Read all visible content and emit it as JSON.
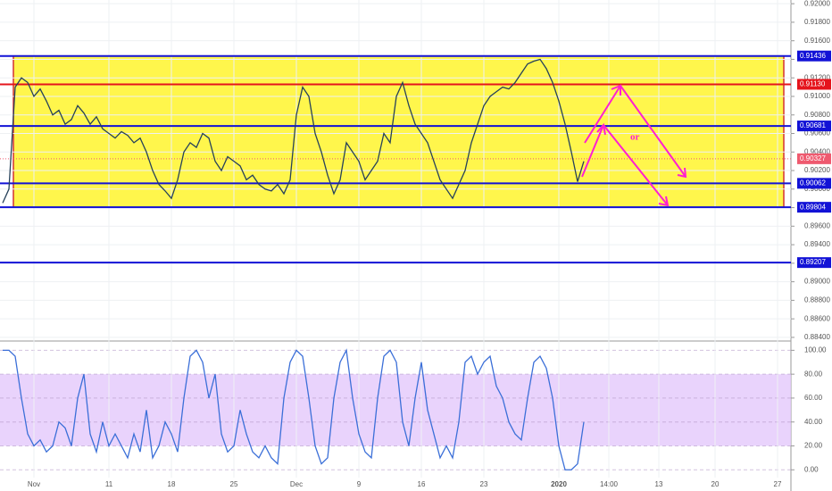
{
  "chart_data": [
    {
      "type": "line",
      "categories": [
        null,
        null,
        null,
        null,
        null,
        "Nov",
        null,
        null,
        null,
        null,
        null,
        null,
        null,
        null,
        null,
        null,
        null,
        "11",
        null,
        null,
        null,
        null,
        null,
        null,
        null,
        null,
        null,
        "18",
        null,
        null,
        null,
        null,
        null,
        null,
        null,
        null,
        null,
        "25",
        null,
        null,
        null,
        null,
        null,
        null,
        null,
        null,
        null,
        "Dec",
        null,
        null,
        null,
        null,
        null,
        null,
        null,
        null,
        null,
        "9",
        null,
        null,
        null,
        null,
        null,
        null,
        null,
        null,
        null,
        "16",
        null,
        null,
        null,
        null,
        null,
        null,
        null,
        null,
        null,
        "23",
        null,
        null,
        null,
        null,
        null,
        null,
        null,
        null,
        null,
        null,
        null,
        "2020",
        null,
        null,
        null,
        null,
        null,
        null,
        null,
        "14:00",
        null,
        null,
        null,
        null,
        null,
        null,
        null,
        "13",
        null,
        null,
        null,
        null,
        null,
        null,
        null,
        null,
        "20",
        null,
        null,
        null,
        null,
        null,
        null,
        null,
        null,
        null,
        "27",
        null
      ],
      "series": [
        {
          "color": "#26415a",
          "values": [
            0.8985,
            0.9,
            0.911,
            0.912,
            0.9115,
            0.91,
            0.9108,
            0.9095,
            0.908,
            0.9085,
            0.907,
            0.9075,
            0.909,
            0.9082,
            0.907,
            0.9078,
            0.9065,
            0.906,
            0.9055,
            0.9062,
            0.9058,
            0.905,
            0.9055,
            0.904,
            0.902,
            0.9005,
            0.8998,
            0.899,
            0.901,
            0.904,
            0.905,
            0.9045,
            0.906,
            0.9055,
            0.903,
            0.902,
            0.9035,
            0.903,
            0.9025,
            0.901,
            0.9015,
            0.9005,
            0.9,
            0.8998,
            0.9005,
            0.8995,
            0.901,
            0.908,
            0.911,
            0.91,
            0.906,
            0.904,
            0.9015,
            0.8995,
            0.901,
            0.905,
            0.904,
            0.903,
            0.901,
            0.902,
            0.903,
            0.906,
            0.905,
            0.91,
            0.9115,
            0.909,
            0.907,
            0.906,
            0.905,
            0.903,
            0.901,
            0.9,
            0.899,
            0.9005,
            0.902,
            0.905,
            0.907,
            0.909,
            0.91,
            0.9105,
            0.911,
            0.9108,
            0.9115,
            0.9125,
            0.9135,
            0.9138,
            0.914,
            0.913,
            0.9115,
            0.9095,
            0.907,
            0.904,
            0.9008,
            0.903,
            null,
            null,
            null,
            null,
            null,
            null,
            null,
            null,
            null,
            null,
            null,
            null,
            null,
            null,
            null,
            null,
            null,
            null,
            null,
            null,
            null,
            null,
            null,
            null,
            null,
            null,
            null,
            null,
            null,
            null,
            null,
            null
          ]
        }
      ],
      "ylim": [
        0.8838,
        0.9204
      ],
      "yticks": [
        {
          "value": 0.884,
          "label": "0.88400"
        },
        {
          "value": 0.886,
          "label": "0.88600"
        },
        {
          "value": 0.888,
          "label": "0.88800"
        },
        {
          "value": 0.89,
          "label": "0.89000"
        },
        {
          "value": 0.892,
          "label": "0.89200"
        },
        {
          "value": 0.894,
          "label": "0.89400"
        },
        {
          "value": 0.896,
          "label": "0.89600"
        },
        {
          "value": 0.898,
          "label": "0.89800"
        },
        {
          "value": 0.9,
          "label": "0.90000"
        },
        {
          "value": 0.902,
          "label": "0.90200"
        },
        {
          "value": 0.904,
          "label": "0.90400"
        },
        {
          "value": 0.906,
          "label": "0.90600"
        },
        {
          "value": 0.908,
          "label": "0.90800"
        },
        {
          "value": 0.91,
          "label": "0.91000"
        },
        {
          "value": 0.912,
          "label": "0.91200"
        },
        {
          "value": 0.914,
          "label": "0.91400"
        },
        {
          "value": 0.916,
          "label": "0.91600"
        },
        {
          "value": 0.918,
          "label": "0.91800"
        },
        {
          "value": 0.92,
          "label": "0.92000"
        }
      ],
      "grid": true,
      "levels": [
        {
          "value": 0.91436,
          "label": "0.91436",
          "color": "#1212d6"
        },
        {
          "value": 0.9113,
          "label": "0.91130",
          "color": "#e5141c"
        },
        {
          "value": 0.90681,
          "label": "0.90681",
          "color": "#1212d6"
        },
        {
          "value": 0.90062,
          "label": "0.90062",
          "color": "#1212d6"
        },
        {
          "value": 0.89207,
          "label": "0.89207",
          "color": "#1212d6"
        },
        {
          "value": 0.89804,
          "label": "0.89804",
          "color": "#1212d6"
        }
      ],
      "last": {
        "value": 0.90327,
        "label": "0.90327",
        "color": "#ef5a6f"
      },
      "annotation": "or"
    },
    {
      "type": "line",
      "series": [
        {
          "color": "#3b6fd8",
          "values": [
            100,
            100,
            95,
            60,
            30,
            20,
            25,
            15,
            20,
            40,
            35,
            20,
            60,
            80,
            30,
            15,
            40,
            20,
            30,
            20,
            10,
            30,
            15,
            50,
            10,
            20,
            40,
            30,
            15,
            60,
            95,
            100,
            90,
            60,
            80,
            30,
            15,
            20,
            50,
            30,
            15,
            10,
            20,
            10,
            5,
            60,
            90,
            100,
            95,
            60,
            20,
            5,
            10,
            60,
            90,
            100,
            60,
            30,
            15,
            10,
            60,
            95,
            100,
            90,
            40,
            20,
            60,
            90,
            50,
            30,
            10,
            20,
            10,
            40,
            90,
            95,
            80,
            90,
            95,
            70,
            60,
            40,
            30,
            25,
            60,
            90,
            95,
            85,
            60,
            20,
            0,
            0,
            5,
            40,
            null,
            null,
            null,
            null,
            null,
            null,
            null,
            null,
            null,
            null,
            null,
            null,
            null,
            null,
            null,
            null,
            null,
            null,
            null,
            null,
            null,
            null,
            null,
            null,
            null,
            null,
            null,
            null,
            null,
            null,
            null,
            null
          ]
        }
      ],
      "ylim": [
        -14,
        107
      ],
      "yticks": [
        {
          "value": 0,
          "label": "0.00"
        },
        {
          "value": 20,
          "label": "20.00"
        },
        {
          "value": 40,
          "label": "40.00"
        },
        {
          "value": 60,
          "label": "60.00"
        },
        {
          "value": 80,
          "label": "80.00"
        },
        {
          "value": 100,
          "label": "100.00"
        }
      ]
    }
  ]
}
